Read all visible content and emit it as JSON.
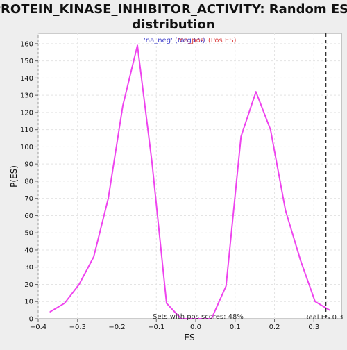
{
  "chart_data": {
    "type": "line",
    "title_line1": "PROTEIN_KINASE_INHIBITOR_ACTIVITY: Random ES",
    "title_line2": "distribution",
    "xlabel": "ES",
    "ylabel": "P(ES)",
    "xlim": [
      -0.4,
      0.37
    ],
    "ylim": [
      0,
      166
    ],
    "xticks": [
      -0.4,
      -0.3,
      -0.2,
      -0.1,
      0.0,
      0.1,
      0.2,
      0.3
    ],
    "xtick_labels": [
      "−0.4",
      "−0.3",
      "−0.2",
      "−0.1",
      "0.0",
      "0.1",
      "0.2",
      "0.3"
    ],
    "yticks": [
      0,
      10,
      20,
      30,
      40,
      50,
      60,
      70,
      80,
      90,
      100,
      110,
      120,
      130,
      140,
      150,
      160
    ],
    "grid": true,
    "legend": [
      {
        "label": "'na_neg' (Neg ES)",
        "color": "#4444cc"
      },
      {
        "label": "'na_pos' (Pos ES)",
        "color": "#dd4444"
      }
    ],
    "line_color": "#ee44ee",
    "series": [
      {
        "x": [
          -0.37,
          -0.333,
          -0.296,
          -0.259,
          -0.222,
          -0.185,
          -0.148,
          -0.111,
          -0.074,
          -0.037,
          0.0,
          0.04,
          0.077,
          0.115,
          0.153,
          0.19,
          0.228,
          0.266,
          0.303,
          0.34
        ],
        "values": [
          4,
          9,
          20,
          36,
          70,
          124,
          159,
          91,
          9,
          0,
          0,
          0,
          19,
          106,
          132,
          110,
          63,
          34,
          10,
          5
        ]
      }
    ],
    "real_es": 0.33,
    "real_es_color": "#333333",
    "real_es_label": "Real ES 0.3",
    "annotation": "Sets with pos scores: 48%"
  }
}
